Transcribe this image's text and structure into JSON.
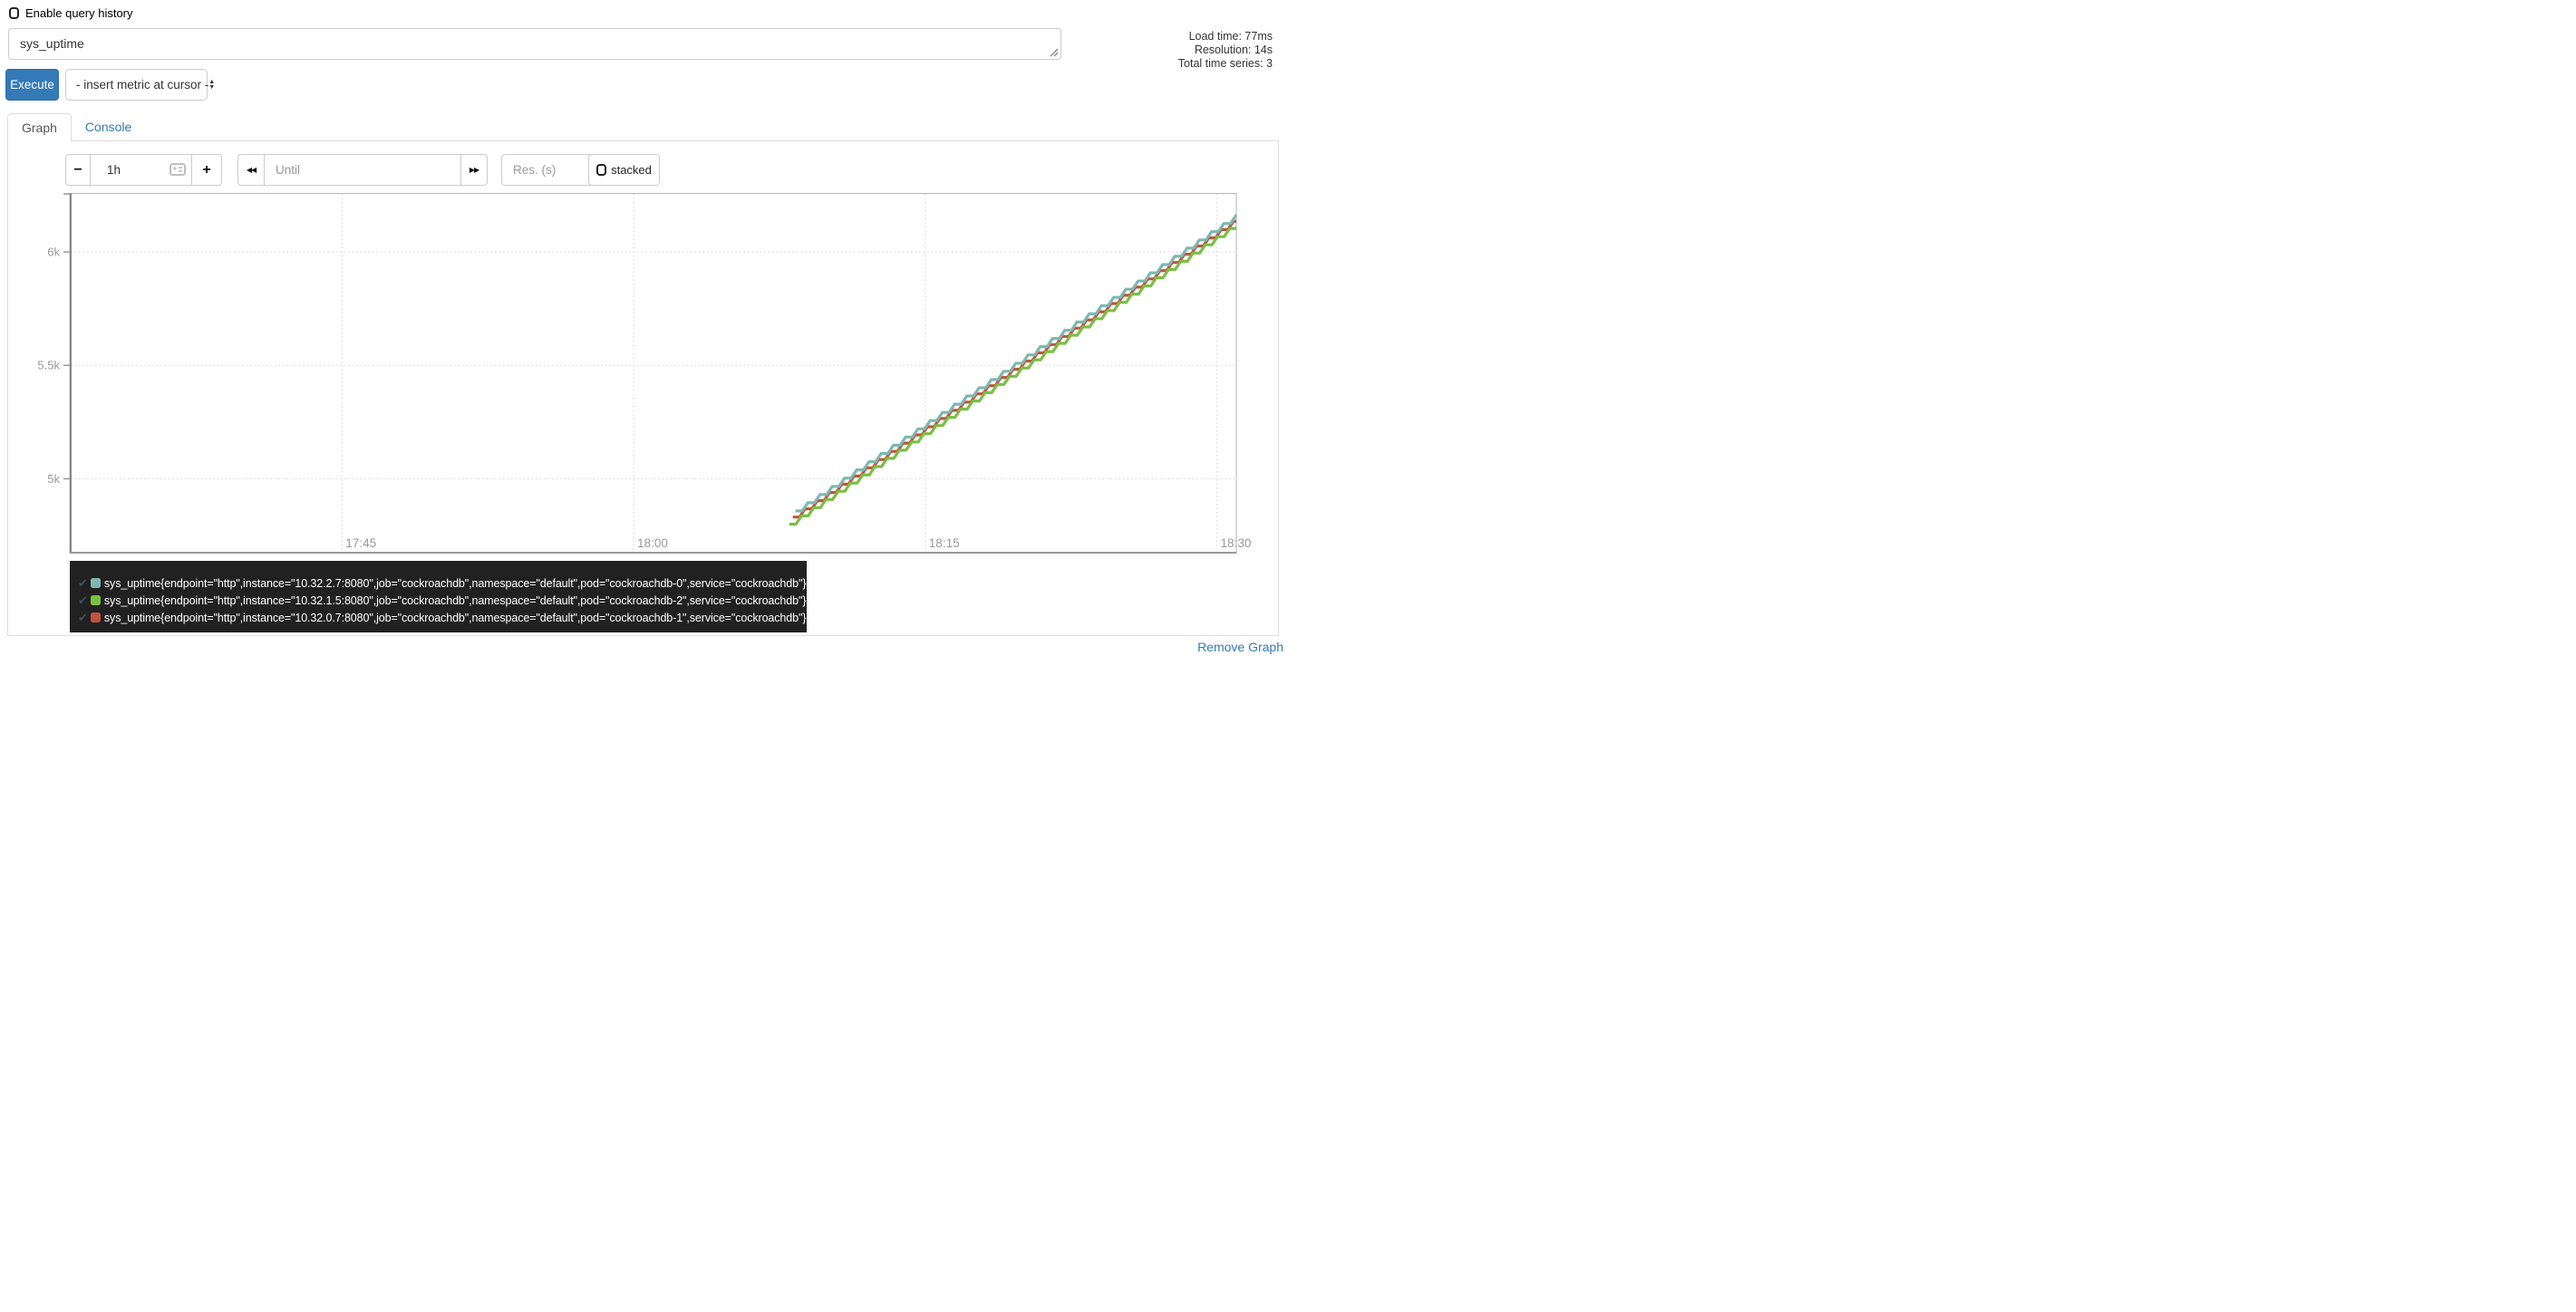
{
  "header": {
    "history_checkbox_label": "Enable query history",
    "history_checkbox_checked": false,
    "query_value": "sys_uptime",
    "execute_label": "Execute",
    "metric_dropdown_value": "- insert metric at cursor -",
    "dropdown_arrow_up": "▲",
    "dropdown_arrow_down": "▼"
  },
  "stats": {
    "lines": [
      "Load time: 77ms",
      "Resolution: 14s",
      "Total time series: 3"
    ]
  },
  "tabs": {
    "graph": "Graph",
    "console": "Console"
  },
  "controls": {
    "shrink_range_label": "−",
    "range_value": "1h",
    "grow_range_label": "+",
    "back_glyph": "◀◀",
    "until_placeholder": "Until",
    "forward_glyph": "▶▶",
    "resolution_placeholder": "Res. (s)",
    "stacked_label": "stacked",
    "stacked_checked": false
  },
  "colors": {
    "accent_blue": "#337ab7",
    "legend_bg": "#212121",
    "grid": "#dddddd",
    "axis_text": "#999999",
    "plot_border": "#b3b3b3",
    "y_axis_line": "#888888",
    "x_axis_line": "#999999",
    "check": "#3d5166"
  },
  "chart_data": {
    "type": "line",
    "line_style": "stairs",
    "title": "",
    "xlabel": "",
    "ylabel": "",
    "grid": true,
    "legend_position": "bottom",
    "x_axis": {
      "start": "17:31",
      "end": "18:31",
      "ticks": [
        "17:45",
        "18:00",
        "18:15",
        "18:30"
      ]
    },
    "y_axis": {
      "min": 4670,
      "max": 6260,
      "ticks": [
        {
          "label": "6k",
          "value": 6000
        },
        {
          "label": "5.5k",
          "value": 5500
        },
        {
          "label": "5k",
          "value": 5000
        }
      ]
    },
    "series": [
      {
        "name": "sys_uptime{pod=\"cockroachdb-0\"}",
        "color": "#7db8b0",
        "points": [
          {
            "t": "18:08",
            "v": 4830
          },
          {
            "t": "18:31",
            "v": 6170
          }
        ]
      },
      {
        "name": "sys_uptime{pod=\"cockroachdb-2\"}",
        "color": "#78c043",
        "points": [
          {
            "t": "18:08",
            "v": 4800
          },
          {
            "t": "18:31",
            "v": 6140
          }
        ]
      },
      {
        "name": "sys_uptime{pod=\"cockroachdb-1\"}",
        "color": "#c2513f",
        "points": [
          {
            "t": "18:08",
            "v": 4815
          },
          {
            "t": "18:31",
            "v": 6155
          }
        ]
      }
    ]
  },
  "legend": {
    "check_glyph": "✔",
    "series": [
      {
        "color": "#7db8b0",
        "label": "sys_uptime{endpoint=\"http\",instance=\"10.32.2.7:8080\",job=\"cockroachdb\",namespace=\"default\",pod=\"cockroachdb-0\",service=\"cockroachdb\"}"
      },
      {
        "color": "#78c043",
        "label": "sys_uptime{endpoint=\"http\",instance=\"10.32.1.5:8080\",job=\"cockroachdb\",namespace=\"default\",pod=\"cockroachdb-2\",service=\"cockroachdb\"}"
      },
      {
        "color": "#c2513f",
        "label": "sys_uptime{endpoint=\"http\",instance=\"10.32.0.7:8080\",job=\"cockroachdb\",namespace=\"default\",pod=\"cockroachdb-1\",service=\"cockroachdb\"}"
      }
    ]
  },
  "footer": {
    "remove_graph_label": "Remove Graph"
  }
}
